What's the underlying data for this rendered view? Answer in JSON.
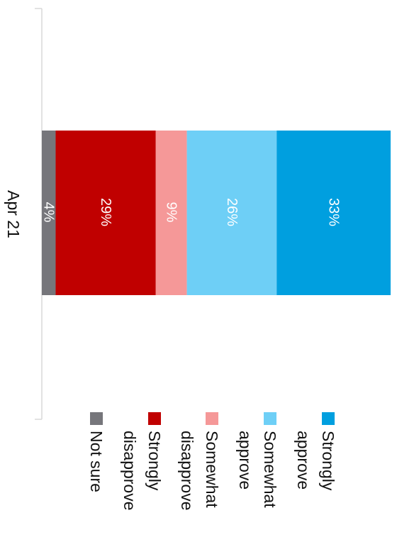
{
  "chart_data": {
    "type": "bar",
    "orientation": "stacked-horizontal",
    "rotation": "90deg clockwise",
    "categories": [
      "Apr 21"
    ],
    "series": [
      {
        "name": "Not sure",
        "values": [
          4
        ],
        "color": "#76767b",
        "label": "4%"
      },
      {
        "name": "Strongly disapprove",
        "values": [
          29
        ],
        "color": "#c00000",
        "label": "29%"
      },
      {
        "name": "Somewhat disapprove",
        "values": [
          9
        ],
        "color": "#f59898",
        "label": "9%"
      },
      {
        "name": "Somewhat approve",
        "values": [
          26
        ],
        "color": "#6ecff6",
        "label": "26%"
      },
      {
        "name": "Strongly approve",
        "values": [
          33
        ],
        "color": "#009fdf",
        "label": "33%"
      }
    ],
    "legend": [
      {
        "lines": [
          "Strongly",
          "approve"
        ],
        "color": "#009fdf"
      },
      {
        "lines": [
          "Somewhat",
          "approve"
        ],
        "color": "#6ecff6"
      },
      {
        "lines": [
          "Somewhat",
          "disapprove"
        ],
        "color": "#f59898"
      },
      {
        "lines": [
          "Strongly",
          "disapprove"
        ],
        "color": "#c00000"
      },
      {
        "lines": [
          "Not sure"
        ],
        "color": "#76767b"
      }
    ],
    "legend_position": "bottom",
    "grid": false
  }
}
